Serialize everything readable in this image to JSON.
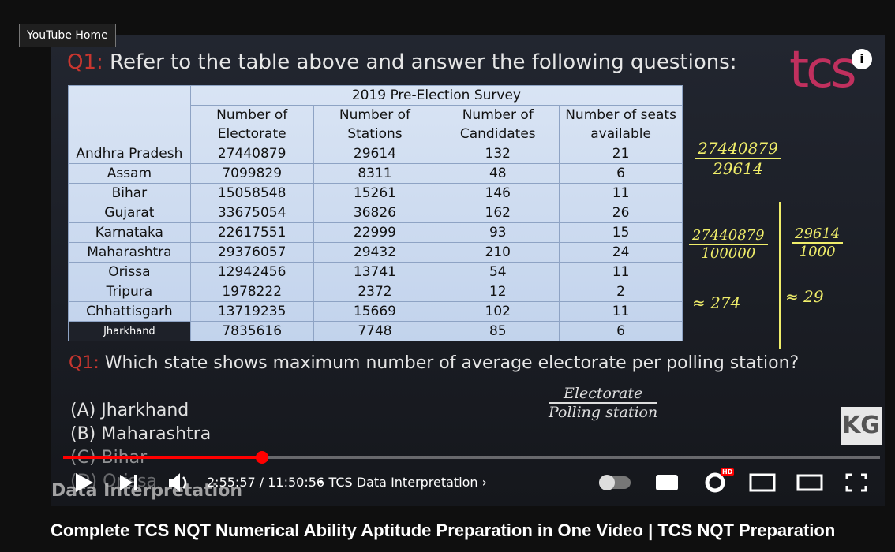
{
  "tooltip": "YouTube Home",
  "video": {
    "heading": {
      "prefix": "Q1:",
      "text": "Refer to the table above and answer the following questions:"
    },
    "logo": "tcs",
    "table": {
      "title": "2019 Pre-Election Survey",
      "headers": [
        [
          "Number of",
          "Electorate"
        ],
        [
          "Number of",
          "Stations"
        ],
        [
          "Number of",
          "Candidates"
        ],
        [
          "Number of seats",
          "available"
        ]
      ],
      "rows": [
        [
          "Andhra Pradesh",
          27440879,
          29614,
          132,
          21
        ],
        [
          "Assam",
          7099829,
          8311,
          48,
          6
        ],
        [
          "Bihar",
          15058548,
          15261,
          146,
          11
        ],
        [
          "Gujarat",
          33675054,
          36826,
          162,
          26
        ],
        [
          "Karnataka",
          22617551,
          22999,
          93,
          15
        ],
        [
          "Maharashtra",
          29376057,
          29432,
          210,
          24
        ],
        [
          "Orissa",
          12942456,
          13741,
          54,
          11
        ],
        [
          "Tripura",
          1978222,
          2372,
          12,
          2
        ],
        [
          "Chhattisgarh",
          13719235,
          15669,
          102,
          11
        ],
        [
          "Jharkhand",
          7835616,
          7748,
          85,
          6
        ]
      ]
    },
    "notes": {
      "fraction1": {
        "num": "27440879",
        "den": "29614"
      },
      "fraction2": {
        "num": "27440879",
        "den": "100000"
      },
      "fraction3": {
        "num": "29614",
        "den": "1000"
      },
      "approx1": "≈ 274",
      "approx2": "≈ 29",
      "formula": {
        "num": "Electorate",
        "den": "Polling station"
      }
    },
    "question": {
      "prefix": "Q1:",
      "text": "Which state shows maximum number of average electorate per polling station?"
    },
    "options": [
      "(A) Jharkhand",
      "(B) Maharashtra",
      "(C) Bihar",
      "(D) Orissa"
    ],
    "watermark": "Data Interpretation",
    "badge": "KG"
  },
  "player": {
    "time": "2:55:57 / 11:50:56",
    "chapter": "• TCS Data Interpretation",
    "hd": "HD"
  },
  "title": "Complete TCS NQT Numerical Ability Aptitude Preparation in One Video | TCS NQT Preparation"
}
